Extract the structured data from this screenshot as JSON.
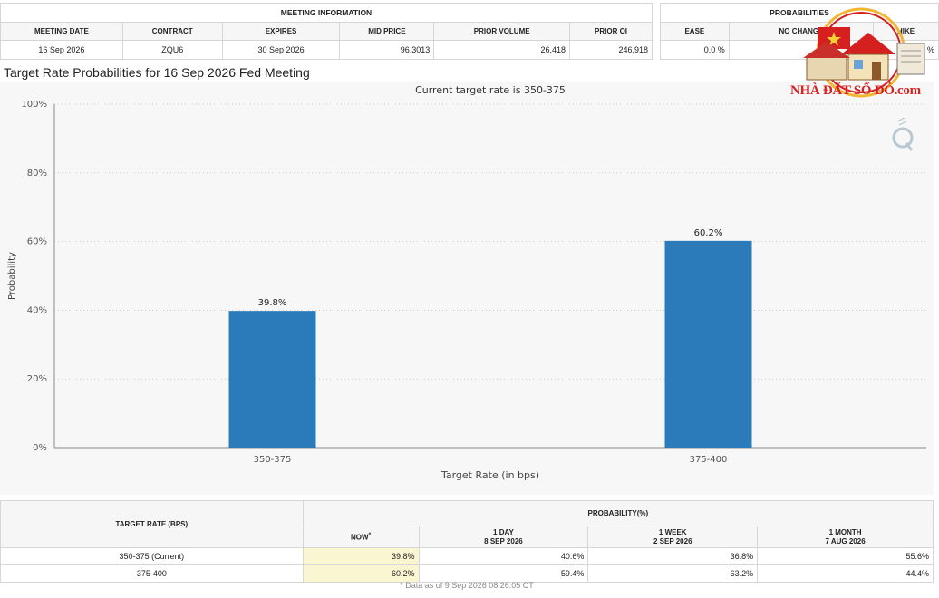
{
  "meeting_table": {
    "section_title": "MEETING INFORMATION",
    "headers": [
      "MEETING DATE",
      "CONTRACT",
      "EXPIRES",
      "MID PRICE",
      "PRIOR VOLUME",
      "PRIOR OI"
    ],
    "values": [
      "16 Sep 2026",
      "ZQU6",
      "30 Sep 2026",
      "96.3013",
      "26,418",
      "246,918"
    ]
  },
  "prob_top": {
    "section_title": "PROBABILITIES",
    "headers": [
      "EASE",
      "NO CHANGE",
      "HIKE"
    ],
    "values": [
      "0.0 %",
      "",
      "60.2 %"
    ]
  },
  "chart_title": "Target Rate Probabilities for 16 Sep 2026 Fed Meeting",
  "chart_data": {
    "type": "bar",
    "subtitle": "Current target rate is 350-375",
    "categories": [
      "350-375",
      "375-400"
    ],
    "values": [
      39.8,
      60.2
    ],
    "data_labels": [
      "39.8%",
      "60.2%"
    ],
    "xlabel": "Target Rate (in bps)",
    "ylabel": "Probability",
    "ylim": [
      0,
      100
    ],
    "yticks": [
      "0%",
      "20%",
      "40%",
      "60%",
      "80%",
      "100%"
    ],
    "ytick_values": [
      0,
      20,
      40,
      60,
      80,
      100
    ],
    "bar_color": "#2b7bba",
    "grid": true
  },
  "watermark": {
    "text": "NHÀ ĐẤT SỔ ĐỎ.com",
    "primary_color": "#d61f1f",
    "accent_color": "#f2b632"
  },
  "bottom_table": {
    "rate_header": "TARGET RATE (BPS)",
    "prob_header": "PROBABILITY(%)",
    "col_now": "NOW",
    "col_now_mark": "*",
    "col_day_line1": "1 DAY",
    "col_day_line2": "8 SEP 2026",
    "col_week_line1": "1 WEEK",
    "col_week_line2": "2 SEP 2026",
    "col_month_line1": "1 MONTH",
    "col_month_line2": "7 AUG 2026",
    "rows": [
      {
        "rate": "350-375 (Current)",
        "now": "39.8%",
        "day": "40.6%",
        "week": "36.8%",
        "month": "55.6%"
      },
      {
        "rate": "375-400",
        "now": "60.2%",
        "day": "59.4%",
        "week": "63.2%",
        "month": "44.4%"
      }
    ],
    "footnote": "* Data as of 9 Sep 2026 08:26:05 CT"
  }
}
